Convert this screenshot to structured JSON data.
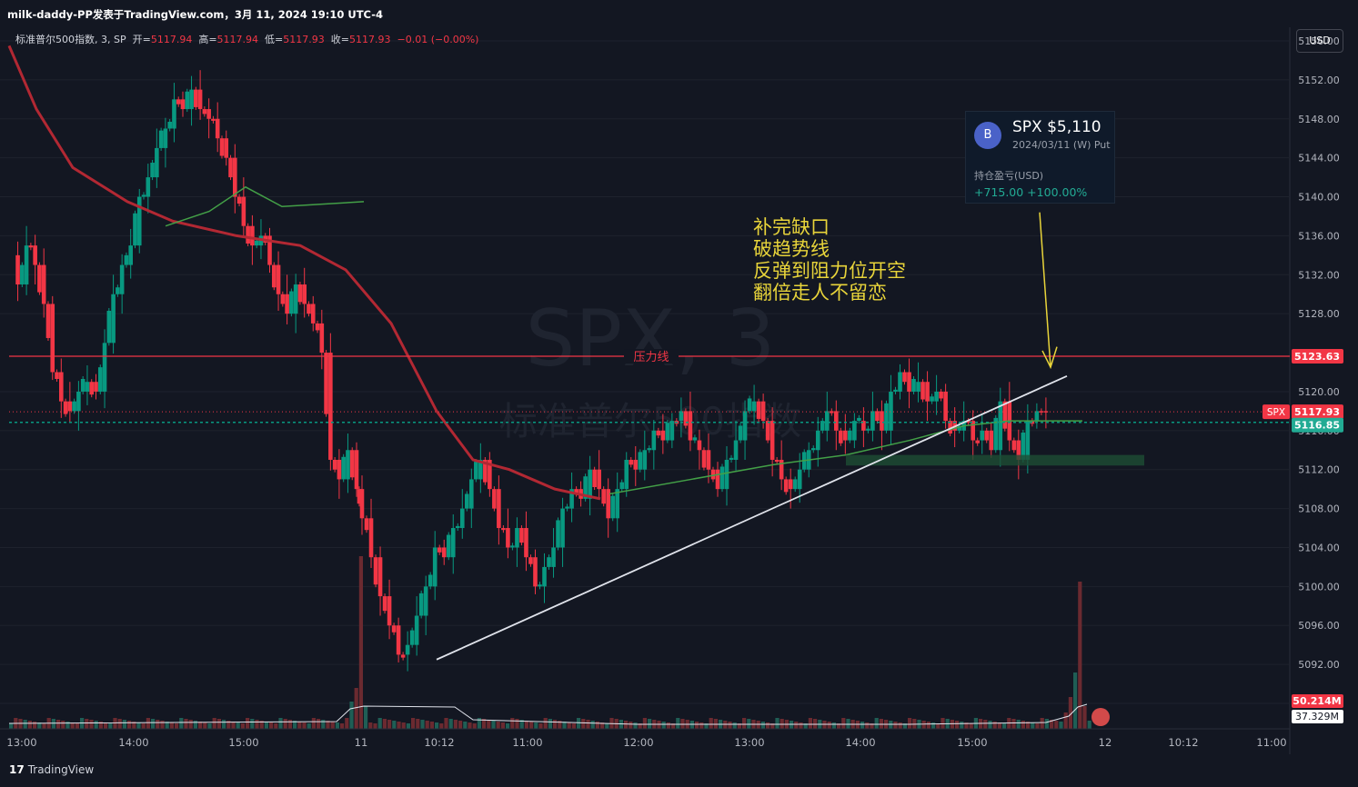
{
  "header": {
    "attribution": "milk-daddy-PP发表于TradingView.com，3月 11, 2024 19:10 UTC-4",
    "legend": {
      "symbol": "标准普尔500指数, 3, SP",
      "open_label": "开=",
      "open": "5117.94",
      "high_label": "高=",
      "high": "5117.94",
      "low_label": "低=",
      "low": "5117.93",
      "close_label": "收=",
      "close": "5117.93",
      "change": "−0.01 (−0.00%)"
    },
    "currency": "USD"
  },
  "watermark": {
    "line1": "SPX, 3",
    "line2": "标准普尔500指数"
  },
  "position_card": {
    "icon_letter": "B",
    "title": "SPX $5,110",
    "subtitle": "2024/03/11 (W) Put",
    "pnl_label": "持仓盈亏(USD)",
    "pnl_value": "+715.00 +100.00%"
  },
  "annotation": {
    "lines": [
      "补完缺口",
      "破趋势线",
      "反弹到阻力位开空",
      "翻倍走人不留恋"
    ]
  },
  "footer": {
    "brand": "TradingView"
  },
  "chart_data": {
    "type": "candlestick",
    "symbol": "SPX",
    "interval": "3",
    "y_axis": {
      "ticks": [
        "5156.00",
        "5152.00",
        "5148.00",
        "5144.00",
        "5140.00",
        "5136.00",
        "5132.00",
        "5128.00",
        "5120.00",
        "5116.00",
        "5112.00",
        "5108.00",
        "5104.00",
        "5100.00",
        "5096.00",
        "5092.00",
        "5088.00"
      ],
      "ylim": [
        5087,
        5157.5
      ]
    },
    "x_axis": {
      "ticks": [
        "13:00",
        "14:00",
        "15:00",
        "11",
        "10:12",
        "11:00",
        "12:00",
        "13:00",
        "14:00",
        "15:00",
        "12",
        "10:12",
        "11:00"
      ]
    },
    "resistance": {
      "label": "压力线",
      "price": 5123.63,
      "badge": "5123.63",
      "color": "#f23645"
    },
    "last_price": {
      "symbol": "SPX",
      "value": "5117.93",
      "color": "#f23645"
    },
    "position_line": {
      "value": "5116.85",
      "color": "#22ab94"
    },
    "volume": {
      "current": "50.214M",
      "average": "37.329M"
    },
    "colors": {
      "up": "#089981",
      "down": "#f23645",
      "ma_slow": "#b22833",
      "ma_fast": "#43a047",
      "trendline": "#e0e3eb",
      "arrow": "#e8d43a"
    },
    "price_path": [
      [
        0,
        5134
      ],
      [
        2,
        5131
      ],
      [
        4,
        5135
      ],
      [
        6,
        5133
      ],
      [
        8,
        5129
      ],
      [
        9,
        5122
      ],
      [
        10,
        5119
      ],
      [
        11,
        5118
      ],
      [
        12,
        5120
      ],
      [
        13,
        5121
      ],
      [
        14,
        5120
      ],
      [
        15,
        5125
      ],
      [
        16,
        5130
      ],
      [
        17,
        5133
      ],
      [
        18,
        5135
      ],
      [
        19,
        5140
      ],
      [
        20,
        5142
      ],
      [
        21,
        5145
      ],
      [
        22,
        5147
      ],
      [
        23,
        5150
      ],
      [
        24,
        5149
      ],
      [
        25,
        5151
      ],
      [
        26,
        5149
      ],
      [
        27,
        5148
      ],
      [
        28,
        5146
      ],
      [
        29,
        5144
      ],
      [
        30,
        5140
      ],
      [
        31,
        5137
      ],
      [
        32,
        5135
      ],
      [
        33,
        5136
      ],
      [
        34,
        5133
      ],
      [
        35,
        5130
      ],
      [
        36,
        5128
      ],
      [
        37,
        5131
      ],
      [
        38,
        5129
      ],
      [
        39,
        5127
      ],
      [
        40,
        5124
      ],
      [
        41,
        5113
      ],
      [
        42,
        5111
      ],
      [
        43,
        5114
      ],
      [
        44,
        5110
      ],
      [
        45,
        5107
      ],
      [
        46,
        5103
      ],
      [
        47,
        5099
      ],
      [
        48,
        5096
      ],
      [
        49,
        5093
      ],
      [
        50,
        5094
      ],
      [
        51,
        5097
      ],
      [
        52,
        5100
      ],
      [
        53,
        5104
      ],
      [
        54,
        5103
      ],
      [
        55,
        5106
      ],
      [
        56,
        5108
      ],
      [
        57,
        5111
      ],
      [
        58,
        5113
      ],
      [
        59,
        5110
      ],
      [
        60,
        5106
      ],
      [
        61,
        5104
      ],
      [
        62,
        5106
      ],
      [
        63,
        5103
      ],
      [
        64,
        5100
      ],
      [
        65,
        5102
      ],
      [
        66,
        5104
      ],
      [
        67,
        5108
      ],
      [
        68,
        5110
      ],
      [
        69,
        5109
      ],
      [
        70,
        5112
      ],
      [
        71,
        5110
      ],
      [
        72,
        5107
      ],
      [
        73,
        5110
      ],
      [
        74,
        5113
      ],
      [
        75,
        5112
      ],
      [
        76,
        5114
      ],
      [
        77,
        5116
      ],
      [
        78,
        5115
      ],
      [
        79,
        5117
      ],
      [
        80,
        5118
      ],
      [
        81,
        5115
      ],
      [
        82,
        5114
      ],
      [
        83,
        5112
      ],
      [
        84,
        5110
      ],
      [
        85,
        5113
      ],
      [
        86,
        5115
      ],
      [
        87,
        5118
      ],
      [
        88,
        5119
      ],
      [
        89,
        5117
      ],
      [
        90,
        5113
      ],
      [
        91,
        5111
      ],
      [
        92,
        5110
      ],
      [
        93,
        5112
      ],
      [
        94,
        5114
      ],
      [
        95,
        5116
      ],
      [
        96,
        5118
      ],
      [
        97,
        5116
      ],
      [
        98,
        5115
      ],
      [
        99,
        5117
      ],
      [
        100,
        5116
      ],
      [
        101,
        5118
      ],
      [
        102,
        5116
      ],
      [
        103,
        5120
      ],
      [
        104,
        5122
      ],
      [
        105,
        5120
      ],
      [
        106,
        5121
      ],
      [
        107,
        5119
      ],
      [
        108,
        5120
      ],
      [
        109,
        5117
      ],
      [
        110,
        5116
      ],
      [
        111,
        5117
      ],
      [
        112,
        5115
      ],
      [
        113,
        5116
      ],
      [
        114,
        5114
      ],
      [
        115,
        5119
      ],
      [
        116,
        5115
      ],
      [
        117,
        5113
      ],
      [
        118,
        5117
      ],
      [
        119,
        5118
      ],
      [
        120,
        5117.93
      ]
    ]
  }
}
